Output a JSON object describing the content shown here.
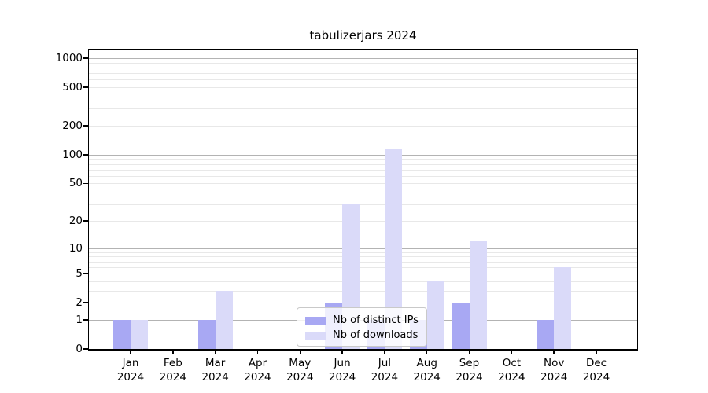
{
  "title": "tabulizerjars 2024",
  "legend": {
    "items": [
      {
        "label": "Nb of distinct IPs",
        "color": "#a8a8f3"
      },
      {
        "label": "Nb of downloads",
        "color": "#dadaf9"
      }
    ]
  },
  "chart_data": {
    "type": "bar",
    "title": "tabulizerjars 2024",
    "categories": [
      "Jan 2024",
      "Feb 2024",
      "Mar 2024",
      "Apr 2024",
      "May 2024",
      "Jun 2024",
      "Jul 2024",
      "Aug 2024",
      "Sep 2024",
      "Oct 2024",
      "Nov 2024",
      "Dec 2024"
    ],
    "series": [
      {
        "name": "Nb of distinct IPs",
        "color": "#a8a8f3",
        "values": [
          1,
          0,
          1,
          0,
          0,
          2,
          1,
          1,
          2,
          0,
          1,
          0
        ]
      },
      {
        "name": "Nb of downloads",
        "color": "#dadaf9",
        "values": [
          1,
          0,
          3,
          0,
          0,
          30,
          115,
          4,
          12,
          0,
          6,
          0
        ]
      }
    ],
    "xlabel": "",
    "ylabel": "",
    "yscale": "log10(value+1)",
    "ylim": [
      0,
      1000
    ],
    "yticks": [
      0,
      1,
      2,
      5,
      10,
      20,
      50,
      100,
      200,
      500,
      1000
    ],
    "grid": {
      "orientation": "horizontal",
      "major_at": [
        1,
        10,
        100,
        1000
      ],
      "minor_at": [
        2,
        3,
        4,
        5,
        6,
        7,
        8,
        9,
        20,
        30,
        40,
        50,
        60,
        70,
        80,
        90,
        200,
        300,
        400,
        500,
        600,
        700,
        800,
        900
      ]
    },
    "legend_position": "lower-center",
    "colors": {
      "major_grid": "#b3b3b3",
      "minor_grid": "#e8e8e8",
      "spine": "#000000",
      "background": "#ffffff"
    }
  }
}
